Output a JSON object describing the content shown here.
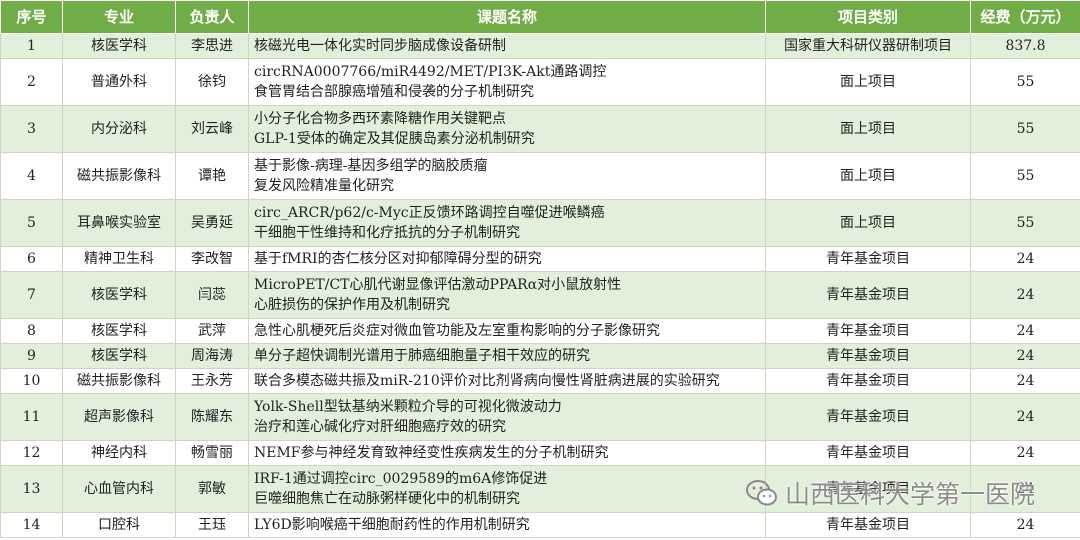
{
  "table": {
    "headers": [
      "序号",
      "专业",
      "负责人",
      "课题名称",
      "项目类别",
      "经费（万元）"
    ],
    "rows": [
      {
        "no": 1,
        "department": "核医学科",
        "leader": "李思进",
        "title": [
          "核磁光电一体化实时同步脑成像设备研制"
        ],
        "category": "国家重大科研仪器研制项目",
        "funding": 837.8
      },
      {
        "no": 2,
        "department": "普通外科",
        "leader": "徐钧",
        "title": [
          "circRNA0007766/miR4492/MET/PI3K-Akt通路调控",
          "食管胃结合部腺癌增殖和侵袭的分子机制研究"
        ],
        "category": "面上项目",
        "funding": 55
      },
      {
        "no": 3,
        "department": "内分泌科",
        "leader": "刘云峰",
        "title": [
          "小分子化合物多西环素降糖作用关键靶点",
          "GLP-1受体的确定及其促胰岛素分泌机制研究"
        ],
        "category": "面上项目",
        "funding": 55
      },
      {
        "no": 4,
        "department": "磁共振影像科",
        "leader": "谭艳",
        "title": [
          "基于影像-病理-基因多组学的脑胶质瘤",
          "复发风险精准量化研究"
        ],
        "category": "面上项目",
        "funding": 55
      },
      {
        "no": 5,
        "department": "耳鼻喉实验室",
        "leader": "吴勇延",
        "title": [
          "circ_ARCR/p62/c-Myc正反馈环路调控自噬促进喉鳞癌",
          "干细胞干性维持和化疗抵抗的分子机制研究"
        ],
        "category": "面上项目",
        "funding": 55
      },
      {
        "no": 6,
        "department": "精神卫生科",
        "leader": "李改智",
        "title": [
          "基于fMRI的杏仁核分区对抑郁障碍分型的研究"
        ],
        "category": "青年基金项目",
        "funding": 24
      },
      {
        "no": 7,
        "department": "核医学科",
        "leader": "闫蕊",
        "title": [
          "MicroPET/CT心肌代谢显像评估激动PPARα对小鼠放射性",
          "心脏损伤的保护作用及机制研究"
        ],
        "category": "青年基金项目",
        "funding": 24
      },
      {
        "no": 8,
        "department": "核医学科",
        "leader": "武萍",
        "title": [
          "急性心肌梗死后炎症对微血管功能及左室重构影响的分子影像研究"
        ],
        "category": "青年基金项目",
        "funding": 24
      },
      {
        "no": 9,
        "department": "核医学科",
        "leader": "周海涛",
        "title": [
          "单分子超快调制光谱用于肺癌细胞量子相干效应的研究"
        ],
        "category": "青年基金项目",
        "funding": 24
      },
      {
        "no": 10,
        "department": "磁共振影像科",
        "leader": "王永芳",
        "title": [
          "联合多模态磁共振及miR-210评价对比剂肾病向慢性肾脏病进展的实验研究"
        ],
        "category": "青年基金项目",
        "funding": 24
      },
      {
        "no": 11,
        "department": "超声影像科",
        "leader": "陈耀东",
        "title": [
          "Yolk-Shell型钛基纳米颗粒介导的可视化微波动力",
          "治疗和莲心碱化疗对肝细胞癌疗效的研究"
        ],
        "category": "青年基金项目",
        "funding": 24
      },
      {
        "no": 12,
        "department": "神经内科",
        "leader": "畅雪丽",
        "title": [
          "NEMF参与神经发育致神经变性疾病发生的分子机制研究"
        ],
        "category": "青年基金项目",
        "funding": 24
      },
      {
        "no": 13,
        "department": "心血管内科",
        "leader": "郭敏",
        "title": [
          "IRF-1通过调控circ_0029589的m6A修饰促进",
          "巨噬细胞焦亡在动脉粥样硬化中的机制研究"
        ],
        "category": "青年基金项目",
        "funding": 24
      },
      {
        "no": 14,
        "department": "口腔科",
        "leader": "王珏",
        "title": [
          "LY6D影响喉癌干细胞耐药性的作用机制研究"
        ],
        "category": "青年基金项目",
        "funding": 24
      }
    ]
  },
  "watermark": "山西医科大学第一医院"
}
